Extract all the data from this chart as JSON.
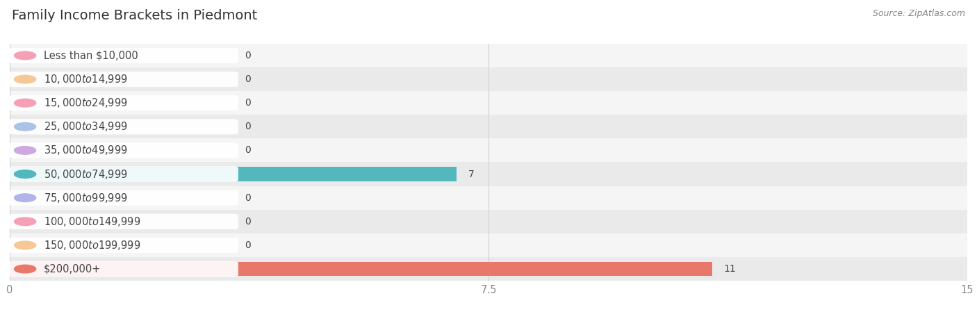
{
  "title": "Family Income Brackets in Piedmont",
  "source": "Source: ZipAtlas.com",
  "categories": [
    "Less than $10,000",
    "$10,000 to $14,999",
    "$15,000 to $24,999",
    "$25,000 to $34,999",
    "$35,000 to $49,999",
    "$50,000 to $74,999",
    "$75,000 to $99,999",
    "$100,000 to $149,999",
    "$150,000 to $199,999",
    "$200,000+"
  ],
  "values": [
    0,
    0,
    0,
    0,
    0,
    7,
    0,
    0,
    0,
    11
  ],
  "bar_colors": [
    "#f5a0b4",
    "#f5c896",
    "#f5a0b4",
    "#aac4e8",
    "#ccaae0",
    "#52b8bc",
    "#b0b4e8",
    "#f5a0b4",
    "#f5c896",
    "#e8786a"
  ],
  "bg_row_colors": [
    "#f5f5f5",
    "#eaeaea"
  ],
  "xlim": [
    0,
    15
  ],
  "xticks": [
    0,
    7.5,
    15
  ],
  "background_color": "#ffffff",
  "title_fontsize": 14,
  "label_fontsize": 10.5,
  "value_fontsize": 10,
  "source_fontsize": 9,
  "bar_height": 0.6,
  "pill_text_color": "#444444",
  "value_color": "#444444",
  "grid_color": "#d0d0d0",
  "title_color": "#333333",
  "source_color": "#888888",
  "tick_color": "#888888"
}
